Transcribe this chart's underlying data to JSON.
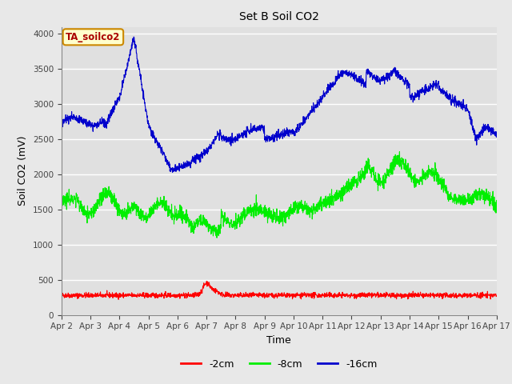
{
  "title": "Set B Soil CO2",
  "xlabel": "Time",
  "ylabel": "Soil CO2 (mV)",
  "ylim": [
    0,
    4100
  ],
  "yticks": [
    0,
    500,
    1000,
    1500,
    2000,
    2500,
    3000,
    3500,
    4000
  ],
  "background_color": "#e8e8e8",
  "plot_bg_color": "#e0e0e0",
  "annotation_text": "TA_soilco2",
  "annotation_box_color": "#ffffcc",
  "annotation_border_color": "#cc8800",
  "legend_entries": [
    "-2cm",
    "-8cm",
    "-16cm"
  ],
  "colors": {
    "2cm": "#ff0000",
    "8cm": "#00ee00",
    "16cm": "#0000cc"
  },
  "xtick_labels": [
    "Apr 2",
    "Apr 3",
    "Apr 4",
    "Apr 5",
    "Apr 6",
    "Apr 7",
    "Apr 8",
    "Apr 9",
    "Apr 10",
    "Apr 11",
    "Apr 12",
    "Apr 13",
    "Apr 14",
    "Apr 15",
    "Apr 16",
    "Apr 17"
  ]
}
